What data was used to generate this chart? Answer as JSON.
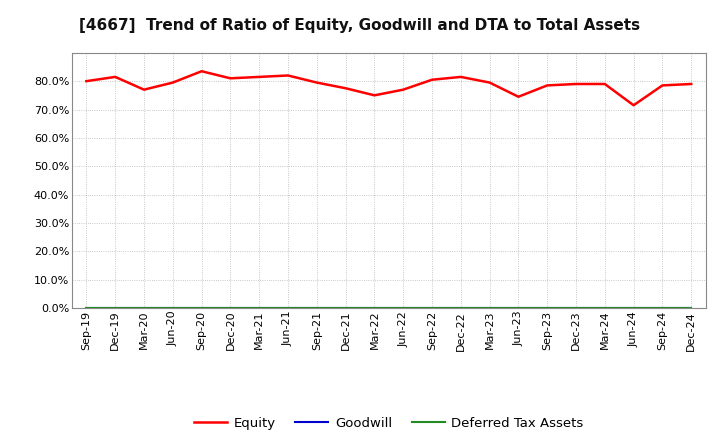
{
  "title": "[4667]  Trend of Ratio of Equity, Goodwill and DTA to Total Assets",
  "x_labels": [
    "Sep-19",
    "Dec-19",
    "Mar-20",
    "Jun-20",
    "Sep-20",
    "Dec-20",
    "Mar-21",
    "Jun-21",
    "Sep-21",
    "Dec-21",
    "Mar-22",
    "Jun-22",
    "Sep-22",
    "Dec-22",
    "Mar-23",
    "Jun-23",
    "Sep-23",
    "Dec-23",
    "Mar-24",
    "Jun-24",
    "Sep-24",
    "Dec-24"
  ],
  "equity": [
    80.0,
    81.5,
    77.0,
    79.5,
    83.5,
    81.0,
    81.5,
    82.0,
    79.5,
    77.5,
    75.0,
    77.0,
    80.5,
    81.5,
    79.5,
    74.5,
    78.5,
    79.0,
    79.0,
    71.5,
    78.5,
    79.0
  ],
  "goodwill": [
    0.0,
    0.0,
    0.0,
    0.0,
    0.0,
    0.0,
    0.0,
    0.0,
    0.0,
    0.0,
    0.0,
    0.0,
    0.0,
    0.0,
    0.0,
    0.0,
    0.0,
    0.0,
    0.0,
    0.0,
    0.0,
    0.0
  ],
  "dta": [
    0.0,
    0.0,
    0.0,
    0.0,
    0.0,
    0.0,
    0.0,
    0.0,
    0.0,
    0.0,
    0.0,
    0.0,
    0.0,
    0.0,
    0.0,
    0.0,
    0.0,
    0.0,
    0.0,
    0.0,
    0.0,
    0.0
  ],
  "equity_color": "#ff0000",
  "goodwill_color": "#0000cd",
  "dta_color": "#228b22",
  "ylim": [
    0,
    90
  ],
  "yticks": [
    0,
    10,
    20,
    30,
    40,
    50,
    60,
    70,
    80
  ],
  "background_color": "#ffffff",
  "plot_bg_color": "#ffffff",
  "grid_color": "#999999",
  "title_fontsize": 11,
  "tick_fontsize": 8,
  "legend_labels": [
    "Equity",
    "Goodwill",
    "Deferred Tax Assets"
  ]
}
